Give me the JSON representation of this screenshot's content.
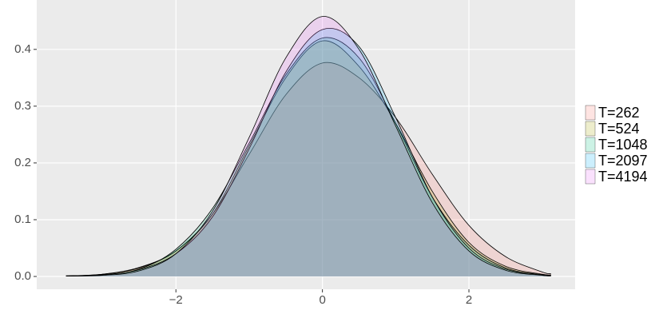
{
  "chart_data": {
    "type": "density",
    "x": [
      -3.5,
      -3.0,
      -2.5,
      -2.0,
      -1.5,
      -1.0,
      -0.5,
      0.0,
      0.5,
      1.0,
      1.5,
      2.0,
      2.5,
      3.0,
      3.12
    ],
    "series": [
      {
        "name": "T=262",
        "color": "#F8766D",
        "values": [
          0.001,
          0.004,
          0.016,
          0.045,
          0.11,
          0.215,
          0.32,
          0.376,
          0.35,
          0.28,
          0.18,
          0.09,
          0.035,
          0.008,
          0.005
        ]
      },
      {
        "name": "T=524",
        "color": "#A3A500",
        "values": [
          0.001,
          0.004,
          0.015,
          0.045,
          0.11,
          0.23,
          0.35,
          0.415,
          0.37,
          0.27,
          0.15,
          0.06,
          0.018,
          0.004,
          0.003
        ]
      },
      {
        "name": "T=1048",
        "color": "#00BF7D",
        "values": [
          0.001,
          0.003,
          0.013,
          0.048,
          0.12,
          0.235,
          0.355,
          0.42,
          0.385,
          0.27,
          0.14,
          0.055,
          0.015,
          0.003,
          0.002
        ]
      },
      {
        "name": "T=2097",
        "color": "#00B0F6",
        "values": [
          0.001,
          0.003,
          0.012,
          0.04,
          0.105,
          0.225,
          0.36,
          0.435,
          0.405,
          0.28,
          0.14,
          0.05,
          0.013,
          0.003,
          0.002
        ]
      },
      {
        "name": "T=4194",
        "color": "#E76BF3",
        "values": [
          0.0005,
          0.002,
          0.01,
          0.04,
          0.115,
          0.245,
          0.385,
          0.458,
          0.4,
          0.265,
          0.13,
          0.045,
          0.011,
          0.002,
          0.001
        ]
      }
    ],
    "xlim": [
      -3.9,
      3.45
    ],
    "ylim": [
      -0.0225,
      0.487
    ],
    "xticks": [
      {
        "value": -2,
        "label": "−2"
      },
      0,
      2
    ],
    "yticks": [
      {
        "value": 0,
        "label": "0.0"
      },
      0.1,
      0.2,
      0.3,
      0.4
    ],
    "grid": true,
    "legend": "right"
  }
}
